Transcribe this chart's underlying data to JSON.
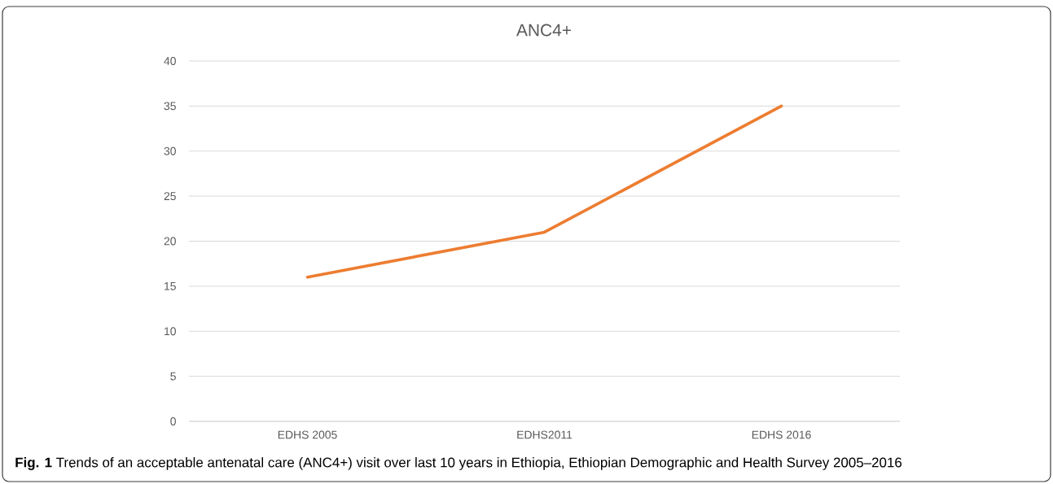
{
  "chart_data": {
    "type": "line",
    "title": "ANC4+",
    "categories": [
      "EDHS 2005",
      "EDHS2011",
      "EDHS 2016"
    ],
    "series": [
      {
        "color": "#ed7d31",
        "values": [
          16,
          21,
          35
        ]
      }
    ],
    "ylim": [
      0,
      40
    ],
    "yticks": [
      0,
      5,
      10,
      15,
      20,
      25,
      30,
      35,
      40
    ],
    "grid": "y",
    "annotations": [
      "**Fig. 1** Trends of an acceptable antenatal care (ANC4+) visit over last 10 years in Ethiopia, Ethiopian Demographic and Health Survey 2005–2016"
    ]
  }
}
